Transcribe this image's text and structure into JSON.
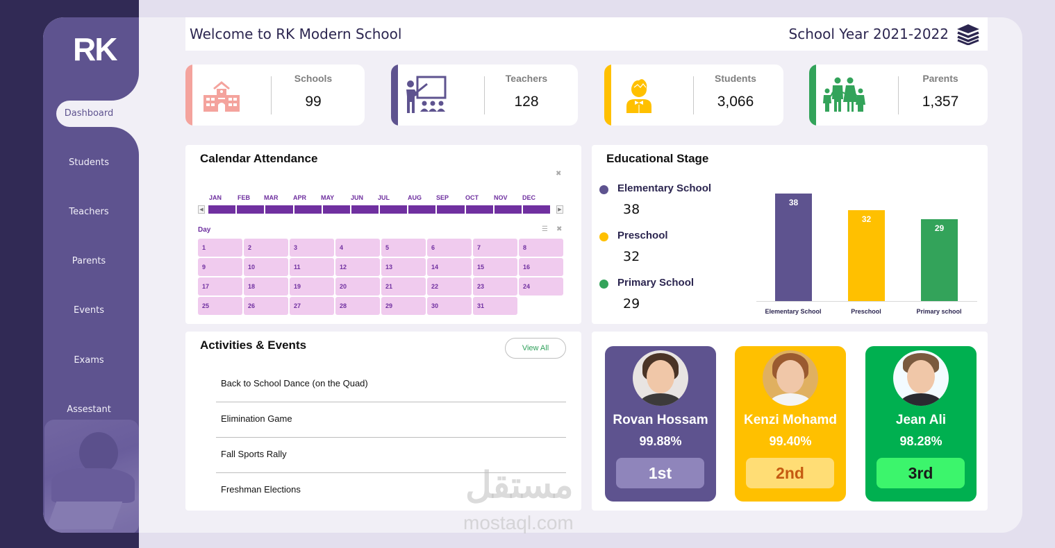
{
  "app": {
    "logo": "RK",
    "title": "Welcome to RK Modern School",
    "school_year": "School Year 2021-2022",
    "header_icon": "books-stack-icon"
  },
  "sidebar": {
    "items": [
      {
        "label": "Dashboard",
        "active": true
      },
      {
        "label": "Students"
      },
      {
        "label": "Teachers"
      },
      {
        "label": "Parents"
      },
      {
        "label": "Events"
      },
      {
        "label": "Exams"
      },
      {
        "label": "Assestant"
      }
    ]
  },
  "kpis": [
    {
      "label": "Schools",
      "value": "99",
      "color": "#f4a39d",
      "icon": "school-building-icon"
    },
    {
      "label": "Teachers",
      "value": "128",
      "color": "#5e538f",
      "icon": "teacher-board-icon"
    },
    {
      "label": "Students",
      "value": "3,066",
      "color": "#ffc000",
      "icon": "student-icon"
    },
    {
      "label": "Parents",
      "value": "1,357",
      "color": "#33a35a",
      "icon": "family-icon"
    }
  ],
  "calendar": {
    "title": "Calendar Attendance",
    "months": [
      "JAN",
      "FEB",
      "MAR",
      "APR",
      "MAY",
      "JUN",
      "JUL",
      "AUG",
      "SEP",
      "OCT",
      "NOV",
      "DEC"
    ],
    "day_label": "Day",
    "days": [
      "1",
      "2",
      "3",
      "4",
      "5",
      "6",
      "7",
      "8",
      "9",
      "10",
      "11",
      "12",
      "13",
      "14",
      "15",
      "16",
      "17",
      "18",
      "19",
      "20",
      "21",
      "22",
      "23",
      "24",
      "25",
      "26",
      "27",
      "28",
      "29",
      "30",
      "31"
    ]
  },
  "educational_stage": {
    "title": "Educational Stage",
    "legend": [
      {
        "name": "Elementary School",
        "value": "38",
        "color": "#5e538f"
      },
      {
        "name": "Preschool",
        "value": "32",
        "color": "#ffc000"
      },
      {
        "name": "Primary School",
        "value": "29",
        "color": "#33a35a"
      }
    ]
  },
  "chart_data": {
    "type": "bar",
    "title": "Educational Stage",
    "categories": [
      "Elementary School",
      "Preschool",
      "Primary school"
    ],
    "values": [
      38,
      32,
      29
    ],
    "colors": [
      "#5e538f",
      "#ffc000",
      "#33a35a"
    ],
    "xlabel": "",
    "ylabel": "",
    "ylim": [
      0,
      38
    ],
    "grid": false,
    "legend_position": "left",
    "data_labels": [
      "38",
      "32",
      "29"
    ]
  },
  "activities": {
    "title": "Activities & Events",
    "view_all": "View All",
    "items": [
      "Back to School Dance (on the Quad)",
      "Elimination Game",
      "Fall Sports Rally",
      "Freshman Elections"
    ]
  },
  "top_students": [
    {
      "name": "Rovan Hossam",
      "score": "99.88%",
      "rank": "1st",
      "bg": "#5e538f",
      "rank_bg": "#8f85bb",
      "rank_color": "#ffffff"
    },
    {
      "name": "Kenzi Mohamd",
      "score": "99.40%",
      "rank": "2nd",
      "bg": "#ffc000",
      "rank_bg": "#ffdd75",
      "rank_color": "#c55a11"
    },
    {
      "name": "Jean Ali",
      "score": "98.28%",
      "rank": "3rd",
      "bg": "#00b050",
      "rank_bg": "#3cf56c",
      "rank_color": "#1a1a1a"
    }
  ],
  "watermark": {
    "arabic": "مستقل",
    "latin": "mostaql.com"
  }
}
